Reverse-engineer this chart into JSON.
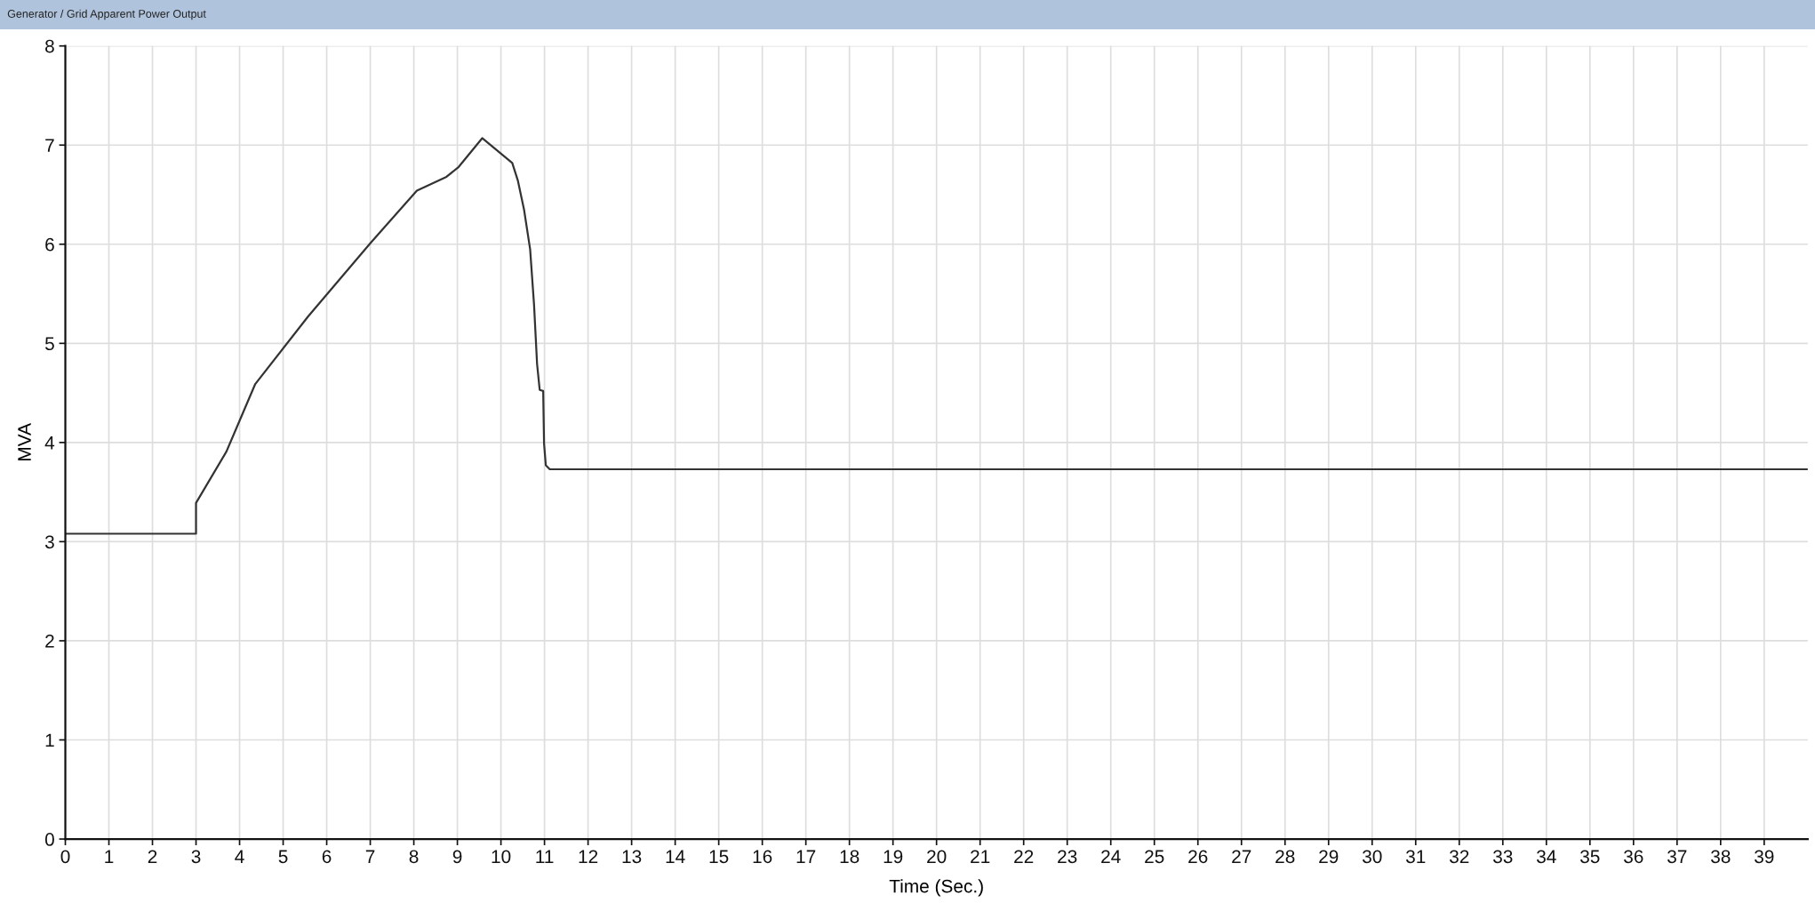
{
  "chart_data": {
    "type": "line",
    "title": "Generator / Grid Apparent Power Output",
    "xlabel": "Time (Sec.)",
    "ylabel": "MVA",
    "x": [
      0,
      3.0,
      3.0,
      3.7,
      4.36,
      5.57,
      7.0,
      8.07,
      8.75,
      9.03,
      9.57,
      10.26,
      10.39,
      10.53,
      10.67,
      10.76,
      10.83,
      10.89,
      10.97,
      10.99,
      11.03,
      11.12,
      40
    ],
    "series": [
      {
        "color": "#333333",
        "values": [
          3.08,
          3.08,
          3.39,
          3.91,
          4.59,
          5.27,
          6.01,
          6.54,
          6.68,
          6.78,
          7.07,
          6.82,
          6.64,
          6.35,
          5.95,
          5.39,
          4.79,
          4.53,
          4.52,
          3.99,
          3.77,
          3.73,
          3.73
        ]
      }
    ],
    "xlim": [
      0,
      40
    ],
    "ylim": [
      0,
      8
    ],
    "xticks": [
      0,
      1,
      2,
      3,
      4,
      5,
      6,
      7,
      8,
      9,
      10,
      11,
      12,
      13,
      14,
      15,
      16,
      17,
      18,
      19,
      20,
      21,
      22,
      23,
      24,
      25,
      26,
      27,
      28,
      29,
      30,
      31,
      32,
      33,
      34,
      35,
      36,
      37,
      38,
      39
    ],
    "yticks": [
      0,
      1,
      2,
      3,
      4,
      5,
      6,
      7,
      8
    ],
    "grid": true,
    "line_style": "solid"
  }
}
